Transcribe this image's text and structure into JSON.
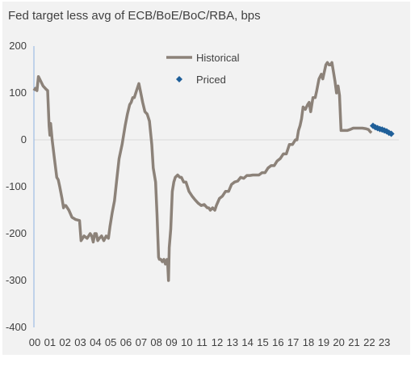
{
  "chart_data": {
    "type": "line",
    "title": "Fed target less avg of ECB/BoE/BoC/RBA, bps",
    "xlabel": "",
    "ylabel": "",
    "xlim": [
      2000,
      2024
    ],
    "ylim": [
      -400,
      200
    ],
    "y_ticks": [
      200,
      100,
      0,
      -100,
      -200,
      -300,
      -400
    ],
    "x_tick_labels": [
      "00",
      "01",
      "02",
      "03",
      "04",
      "05",
      "06",
      "07",
      "08",
      "09",
      "10",
      "11",
      "12",
      "13",
      "14",
      "15",
      "16",
      "17",
      "18",
      "19",
      "20",
      "21",
      "22",
      "23"
    ],
    "grid": false,
    "legend_placement": "top-center",
    "colors": {
      "historical": "#8c8279",
      "priced": "#1f5f99",
      "axis": "#8db3e2",
      "zero_line": "#d9d9d9"
    },
    "series": [
      {
        "name": "Historical",
        "style": "line",
        "x": [
          2000.0,
          2000.1,
          2000.2,
          2000.3,
          2000.45,
          2000.6,
          2000.8,
          2000.9,
          2001.0,
          2001.05,
          2001.1,
          2001.2,
          2001.35,
          2001.5,
          2001.6,
          2001.7,
          2001.85,
          2001.95,
          2002.0,
          2002.1,
          2002.3,
          2002.5,
          2002.75,
          2003.0,
          2003.1,
          2003.3,
          2003.5,
          2003.7,
          2003.8,
          2003.9,
          2004.0,
          2004.1,
          2004.2,
          2004.3,
          2004.45,
          2004.6,
          2004.75,
          2004.9,
          2005.0,
          2005.15,
          2005.3,
          2005.45,
          2005.6,
          2005.8,
          2006.0,
          2006.15,
          2006.3,
          2006.4,
          2006.5,
          2006.6,
          2006.75,
          2006.9,
          2007.0,
          2007.15,
          2007.3,
          2007.45,
          2007.6,
          2007.75,
          2007.85,
          2008.0,
          2008.1,
          2008.2,
          2008.25,
          2008.35,
          2008.45,
          2008.55,
          2008.65,
          2008.75,
          2008.8,
          2008.85,
          2008.9,
          2009.0,
          2009.1,
          2009.2,
          2009.3,
          2009.45,
          2009.6,
          2009.7,
          2009.85,
          2010.0,
          2010.2,
          2010.4,
          2010.6,
          2010.8,
          2011.0,
          2011.2,
          2011.4,
          2011.5,
          2011.6,
          2011.75,
          2011.9,
          2012.0,
          2012.2,
          2012.4,
          2012.6,
          2012.8,
          2013.0,
          2013.2,
          2013.4,
          2013.6,
          2013.8,
          2014.0,
          2014.2,
          2014.4,
          2014.6,
          2014.8,
          2015.0,
          2015.2,
          2015.4,
          2015.6,
          2015.8,
          2016.0,
          2016.2,
          2016.4,
          2016.6,
          2016.8,
          2017.0,
          2017.1,
          2017.2,
          2017.3,
          2017.4,
          2017.5,
          2017.6,
          2017.7,
          2017.85,
          2018.0,
          2018.1,
          2018.2,
          2018.35,
          2018.5,
          2018.6,
          2018.75,
          2018.9,
          2019.0,
          2019.1,
          2019.2,
          2019.3,
          2019.4,
          2019.5,
          2019.6,
          2019.7,
          2019.8,
          2019.9,
          2020.0,
          2020.1,
          2020.2,
          2020.4,
          2020.6,
          2020.8,
          2021.0,
          2021.2,
          2021.4,
          2021.6,
          2021.8,
          2022.0,
          2022.1,
          2022.2
        ],
        "y": [
          105,
          110,
          105,
          135,
          125,
          115,
          108,
          105,
          30,
          10,
          35,
          0,
          -40,
          -80,
          -85,
          -100,
          -125,
          -145,
          -140,
          -140,
          -150,
          -165,
          -170,
          -172,
          -215,
          -205,
          -210,
          -200,
          -205,
          -218,
          -200,
          -200,
          -215,
          -210,
          -205,
          -215,
          -205,
          -210,
          -185,
          -155,
          -130,
          -85,
          -40,
          -10,
          30,
          55,
          75,
          80,
          90,
          90,
          105,
          120,
          105,
          80,
          60,
          55,
          40,
          -10,
          -60,
          -90,
          -160,
          -250,
          -255,
          -255,
          -260,
          -255,
          -265,
          -255,
          -265,
          -300,
          -230,
          -190,
          -110,
          -90,
          -80,
          -75,
          -80,
          -80,
          -90,
          -90,
          -110,
          -120,
          -128,
          -135,
          -140,
          -138,
          -145,
          -145,
          -150,
          -145,
          -150,
          -140,
          -125,
          -120,
          -110,
          -110,
          -95,
          -90,
          -88,
          -80,
          -82,
          -76,
          -76,
          -75,
          -75,
          -75,
          -70,
          -70,
          -60,
          -55,
          -55,
          -45,
          -40,
          -30,
          -30,
          -10,
          -10,
          -5,
          0,
          0,
          20,
          30,
          45,
          70,
          65,
          75,
          80,
          60,
          90,
          90,
          105,
          130,
          140,
          130,
          145,
          160,
          165,
          160,
          160,
          165,
          145,
          125,
          100,
          115,
          95,
          20,
          20,
          20,
          22,
          25,
          25,
          25,
          25,
          24,
          22,
          18,
          15
        ]
      },
      {
        "name": "Priced",
        "style": "markers",
        "x": [
          2022.3,
          2022.45,
          2022.6,
          2022.75,
          2022.9,
          2023.05,
          2023.2,
          2023.35,
          2023.5
        ],
        "y": [
          30,
          27,
          25,
          23,
          22,
          20,
          18,
          15,
          13
        ]
      }
    ]
  }
}
